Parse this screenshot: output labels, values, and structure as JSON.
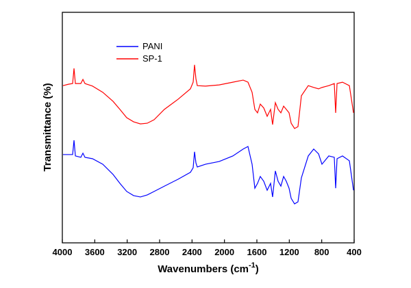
{
  "chart_data": {
    "type": "line",
    "x_label": {
      "text": "Wavenumbers (cm",
      "superscript": "-1",
      "suffix": ")"
    },
    "y_label": "Transmittance (%)",
    "xlim": [
      4000,
      400
    ],
    "xticks": [
      4000,
      3600,
      3200,
      2800,
      2400,
      2000,
      1600,
      1200,
      800,
      400
    ],
    "ylim": [
      0,
      100
    ],
    "legend": "upper left",
    "x": [
      3992,
      3924,
      3873,
      3856,
      3839,
      3772,
      3746,
      3721,
      3628,
      3501,
      3375,
      3290,
      3206,
      3121,
      3037,
      2952,
      2868,
      2741,
      2572,
      2420,
      2386,
      2369,
      2352,
      2335,
      2234,
      2065,
      1896,
      1769,
      1710,
      1659,
      1625,
      1592,
      1558,
      1515,
      1473,
      1431,
      1406,
      1372,
      1338,
      1304,
      1270,
      1237,
      1203,
      1177,
      1135,
      1093,
      1051,
      966,
      899,
      839,
      797,
      713,
      645,
      628,
      611,
      544,
      459,
      408
    ],
    "series": [
      {
        "name": "PANI",
        "color": "#0000ff",
        "values": [
          38.3,
          38.3,
          38.3,
          44.5,
          37.7,
          37.1,
          38.9,
          37.1,
          36.5,
          34.1,
          29.7,
          25.8,
          22.3,
          20.5,
          19.9,
          20.8,
          22.3,
          24.6,
          27.6,
          30.6,
          32.6,
          39.5,
          34.7,
          32.9,
          34.1,
          35.3,
          37.7,
          40.7,
          41.8,
          34.1,
          23.7,
          25.8,
          28.8,
          26.7,
          22.8,
          25.8,
          19.9,
          31.2,
          26.7,
          24.6,
          28.8,
          26.7,
          23.7,
          19.3,
          16.9,
          17.8,
          28.2,
          37.7,
          40.7,
          38.6,
          34.1,
          37.7,
          37.1,
          23.7,
          36.5,
          37.7,
          35.6,
          22.8
        ]
      },
      {
        "name": "SP-1",
        "color": "#ff0000",
        "values": [
          68.2,
          68.8,
          69.1,
          75.7,
          69.1,
          69.1,
          70.9,
          69.1,
          68.0,
          65.3,
          61.4,
          57.9,
          54.3,
          52.5,
          51.6,
          51.9,
          53.4,
          57.9,
          62.3,
          66.8,
          69.7,
          77.2,
          71.2,
          68.2,
          68.0,
          68.5,
          69.7,
          70.6,
          69.7,
          65.3,
          57.9,
          56.4,
          60.2,
          58.5,
          54.9,
          57.9,
          51.3,
          60.8,
          57.9,
          56.4,
          59.3,
          57.9,
          56.4,
          51.9,
          49.6,
          50.4,
          63.8,
          68.2,
          67.4,
          66.8,
          67.4,
          68.2,
          69.1,
          56.4,
          69.1,
          69.7,
          68.2,
          56.4
        ]
      }
    ]
  }
}
